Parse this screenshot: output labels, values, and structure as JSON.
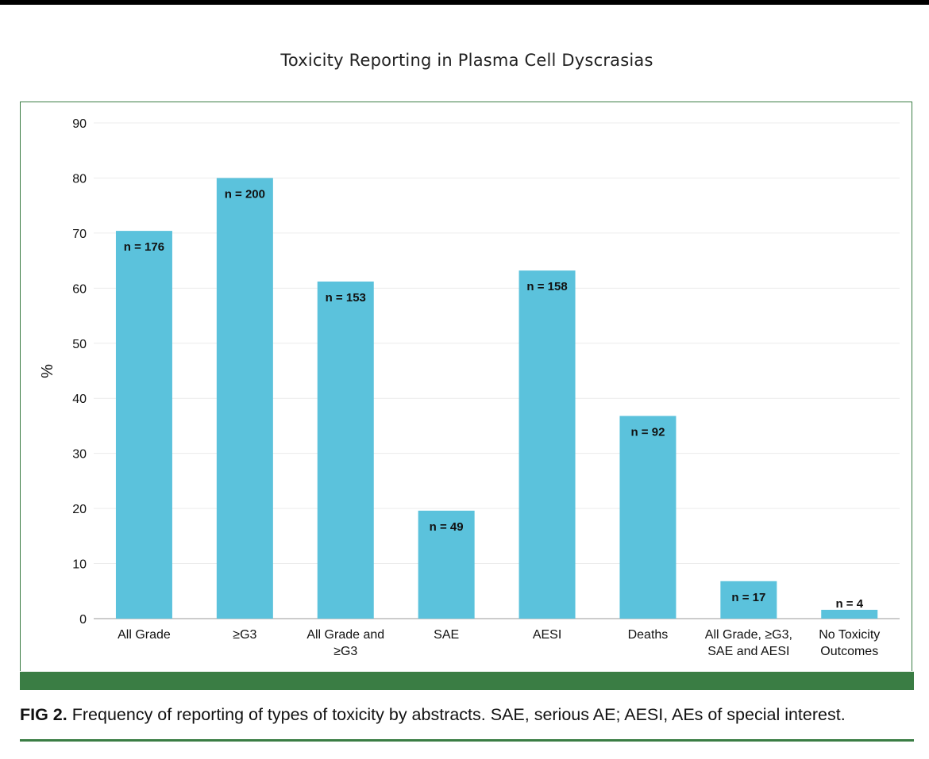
{
  "chart_data": {
    "type": "bar",
    "title": "Toxicity Reporting in Plasma Cell Dyscrasias",
    "xlabel": "",
    "ylabel": "%",
    "ylim": [
      0,
      90
    ],
    "yticks": [
      0,
      10,
      20,
      30,
      40,
      50,
      60,
      70,
      80,
      90
    ],
    "grid": true,
    "categories": [
      [
        "All Grade"
      ],
      [
        "≥G3"
      ],
      [
        "All Grade and",
        "≥G3"
      ],
      [
        "SAE"
      ],
      [
        "AESI"
      ],
      [
        "Deaths"
      ],
      [
        "All Grade, ≥G3,",
        "SAE and AESI"
      ],
      [
        "No Toxicity",
        "Outcomes"
      ]
    ],
    "values": [
      70.4,
      80,
      61.2,
      19.6,
      63.2,
      36.8,
      6.8,
      1.6
    ],
    "data_labels": [
      "n = 176",
      "n = 200",
      "n = 153",
      "n = 49",
      "n = 158",
      "n = 92",
      "n = 17",
      "n = 4"
    ],
    "bar_color": "#5bc2dc"
  },
  "caption": {
    "label": "FIG 2.",
    "text": "Frequency of reporting of types of toxicity by abstracts. SAE, serious AE; AESI, AEs of special interest."
  },
  "colors": {
    "accent_green": "#3a7d44",
    "grid": "#ececec",
    "axis": "#bbbbbb"
  }
}
